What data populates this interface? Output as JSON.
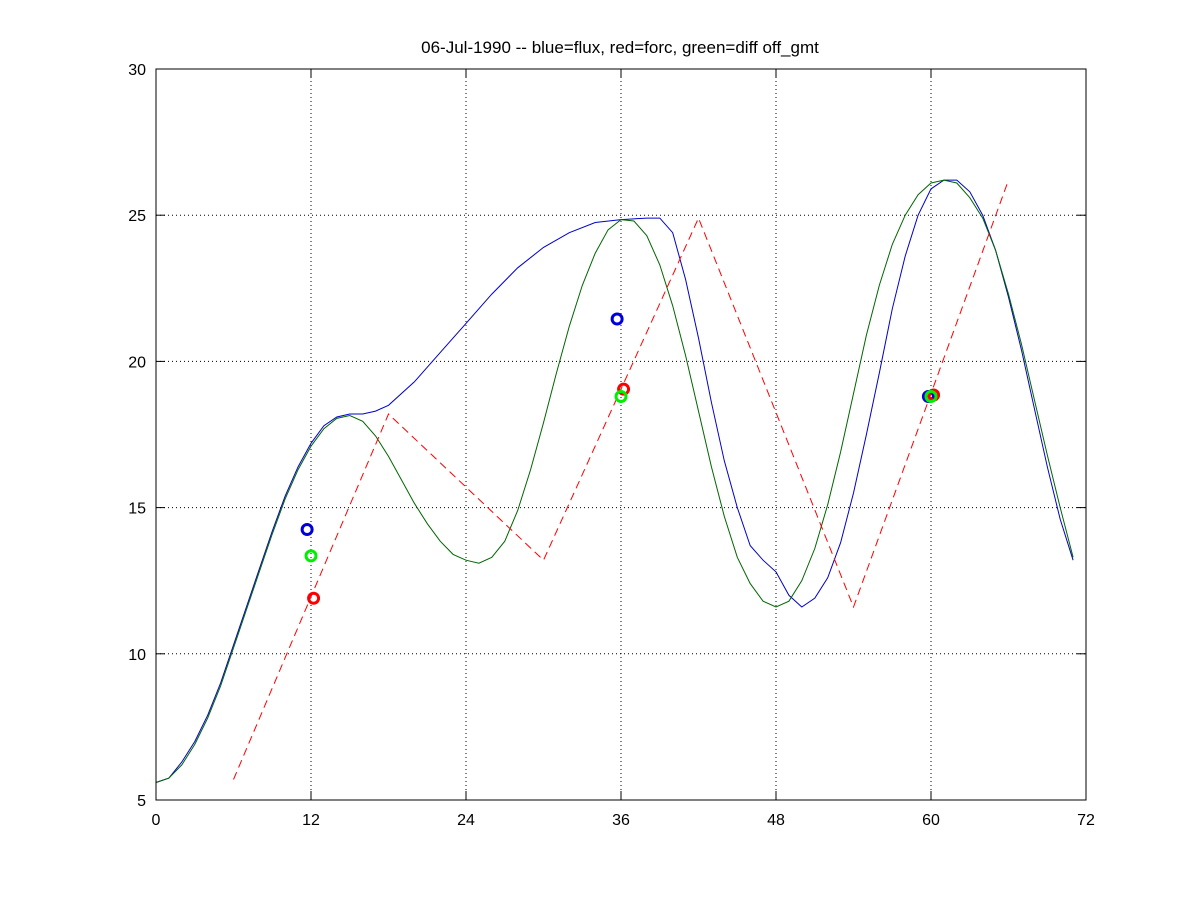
{
  "chart_data": {
    "type": "line",
    "title": "06-Jul-1990 -- blue=flux, red=forc, green=diff off_gmt",
    "xlabel": "",
    "ylabel": "",
    "xlim": [
      0,
      72
    ],
    "ylim": [
      5,
      30
    ],
    "xticks": [
      0,
      12,
      24,
      36,
      48,
      60,
      72
    ],
    "yticks": [
      5,
      10,
      15,
      20,
      25,
      30
    ],
    "grid": true,
    "colors": {
      "blue": "#0000cc",
      "green": "#006600",
      "red": "#ff0000",
      "marker_green": "#00ee00",
      "marker_blue": "#0000dd"
    },
    "series": [
      {
        "style": "solid",
        "color": "#0000cc",
        "x": [
          0,
          1,
          2,
          3,
          4,
          5,
          6,
          7,
          8,
          9,
          10,
          11,
          12,
          13,
          14,
          15,
          16,
          17,
          18,
          20,
          22,
          24,
          26,
          28,
          30,
          32,
          34,
          36,
          38,
          39,
          40,
          41,
          42,
          43,
          44,
          45,
          46,
          47,
          48,
          49,
          50,
          51,
          52,
          53,
          54,
          55,
          56,
          57,
          58,
          59,
          60,
          61,
          62,
          63,
          64,
          65,
          66,
          67,
          68,
          69,
          70,
          71
        ],
        "y": [
          5.6,
          5.75,
          6.3,
          7.0,
          7.9,
          9.0,
          10.3,
          11.6,
          12.9,
          14.2,
          15.4,
          16.4,
          17.2,
          17.8,
          18.1,
          18.2,
          18.2,
          18.3,
          18.5,
          19.3,
          20.3,
          21.3,
          22.3,
          23.2,
          23.9,
          24.4,
          24.75,
          24.85,
          24.9,
          24.9,
          24.4,
          22.8,
          20.8,
          18.6,
          16.6,
          15.0,
          13.7,
          13.2,
          12.8,
          12.0,
          11.6,
          11.9,
          12.6,
          13.8,
          15.5,
          17.5,
          19.6,
          21.8,
          23.6,
          25.0,
          25.9,
          26.2,
          26.2,
          25.8,
          25.0,
          23.8,
          22.2,
          20.4,
          18.4,
          16.4,
          14.6,
          13.2
        ]
      },
      {
        "style": "solid",
        "color": "#006600",
        "x": [
          0,
          1,
          2,
          3,
          4,
          5,
          6,
          7,
          8,
          9,
          10,
          11,
          12,
          13,
          14,
          15,
          16,
          17,
          18,
          19,
          20,
          21,
          22,
          23,
          24,
          25,
          26,
          27,
          28,
          29,
          30,
          31,
          32,
          33,
          34,
          35,
          36,
          37,
          38,
          39,
          40,
          41,
          42,
          43,
          44,
          45,
          46,
          47,
          48,
          49,
          50,
          51,
          52,
          53,
          54,
          55,
          56,
          57,
          58,
          59,
          60,
          61,
          62,
          63,
          64,
          65,
          66,
          67,
          68,
          69,
          70,
          71
        ],
        "y": [
          5.6,
          5.75,
          6.2,
          6.9,
          7.8,
          8.9,
          10.2,
          11.5,
          12.8,
          14.1,
          15.3,
          16.3,
          17.1,
          17.7,
          18.05,
          18.15,
          17.95,
          17.45,
          16.75,
          15.95,
          15.15,
          14.45,
          13.85,
          13.4,
          13.2,
          13.1,
          13.3,
          13.85,
          14.9,
          16.3,
          17.9,
          19.6,
          21.2,
          22.6,
          23.7,
          24.5,
          24.85,
          24.8,
          24.3,
          23.3,
          21.9,
          20.2,
          18.3,
          16.4,
          14.7,
          13.3,
          12.4,
          11.8,
          11.6,
          11.8,
          12.5,
          13.6,
          15.1,
          16.9,
          18.9,
          20.9,
          22.6,
          24.0,
          25.0,
          25.7,
          26.1,
          26.2,
          26.1,
          25.6,
          24.9,
          23.8,
          22.3,
          20.6,
          18.7,
          16.8,
          15.0,
          13.3
        ]
      },
      {
        "style": "dashed",
        "color": "#ff0000",
        "x": [
          6,
          18,
          30,
          42,
          54,
          66
        ],
        "y": [
          5.7,
          18.2,
          13.2,
          24.9,
          11.6,
          26.2
        ]
      }
    ],
    "markers": [
      {
        "color": "#0000dd",
        "x": 11.7,
        "y": 14.25
      },
      {
        "color": "#00ee00",
        "x": 12.0,
        "y": 13.35
      },
      {
        "color": "#ff0000",
        "x": 12.2,
        "y": 11.9
      },
      {
        "color": "#0000dd",
        "x": 35.7,
        "y": 21.45
      },
      {
        "color": "#ff0000",
        "x": 36.2,
        "y": 19.05
      },
      {
        "color": "#00ee00",
        "x": 36.0,
        "y": 18.8
      },
      {
        "color": "#0000dd",
        "x": 59.8,
        "y": 18.8
      },
      {
        "color": "#ff0000",
        "x": 60.2,
        "y": 18.85
      },
      {
        "color": "#00ee00",
        "x": 60.0,
        "y": 18.8
      }
    ]
  }
}
